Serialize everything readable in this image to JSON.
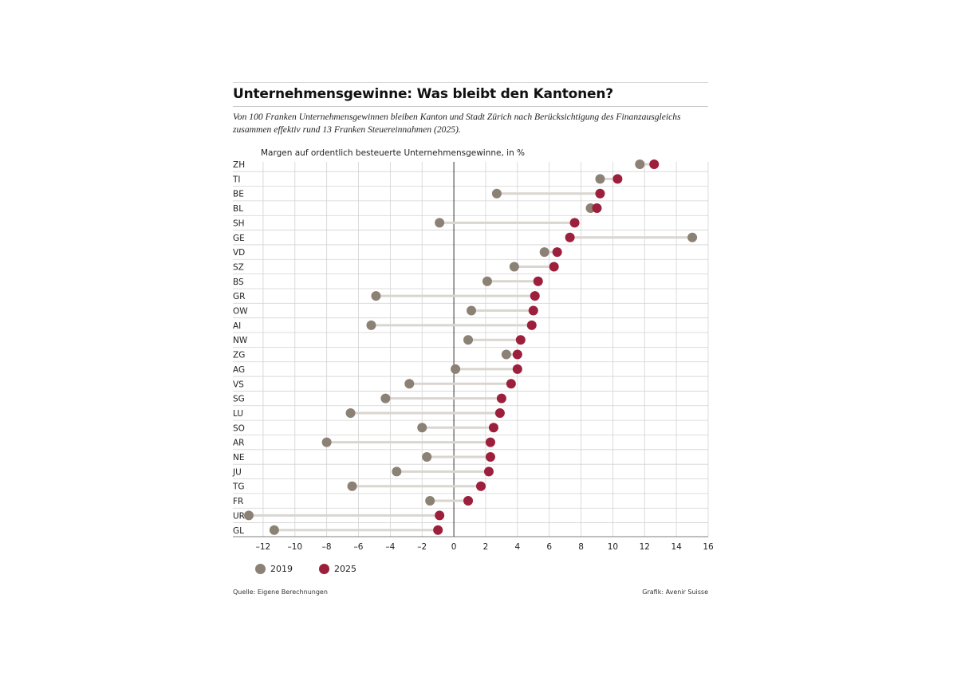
{
  "header": {
    "title": "Unternehmensgewinne: Was bleibt den Kantonen?",
    "subtitle": "Von 100 Franken Unternehmensgewinnen bleiben Kanton und Stadt Zürich nach Berücksichtigung des Finanzausgleichs zusammen effektiv rund 13 Franken Steuereinnahmen (2025)."
  },
  "chart_data": {
    "type": "dumbbell",
    "ylabel": "Margen auf ordentlich besteuerte Unternehmensgewinne, in %",
    "categories": [
      "ZH",
      "TI",
      "BE",
      "BL",
      "SH",
      "GE",
      "VD",
      "SZ",
      "BS",
      "GR",
      "OW",
      "AI",
      "NW",
      "ZG",
      "AG",
      "VS",
      "SG",
      "LU",
      "SO",
      "AR",
      "NE",
      "JU",
      "TG",
      "FR",
      "UR",
      "GL"
    ],
    "series": [
      {
        "name": "2019",
        "color": "#8b8175",
        "values": [
          11.7,
          9.2,
          2.7,
          8.6,
          -0.9,
          15.0,
          5.7,
          3.8,
          2.1,
          -4.9,
          1.1,
          -5.2,
          0.9,
          3.3,
          0.1,
          -2.8,
          -4.3,
          -6.5,
          -2.0,
          -8.0,
          -1.7,
          -3.6,
          -6.4,
          -1.5,
          -12.9,
          -11.3
        ]
      },
      {
        "name": "2025",
        "color": "#9c1f3c",
        "values": [
          12.6,
          10.3,
          9.2,
          9.0,
          7.6,
          7.3,
          6.5,
          6.3,
          5.3,
          5.1,
          5.0,
          4.9,
          4.2,
          4.0,
          4.0,
          3.6,
          3.0,
          2.9,
          2.5,
          2.3,
          2.3,
          2.2,
          1.7,
          0.9,
          -0.9,
          -1.0
        ]
      }
    ],
    "xlim": [
      -13,
      16
    ],
    "xticks": [
      -12,
      -10,
      -8,
      -6,
      -4,
      -2,
      0,
      2,
      4,
      6,
      8,
      10,
      12,
      14,
      16
    ],
    "xtick_labels": [
      "–12",
      "–10",
      "–8",
      "–6",
      "–4",
      "–2",
      "0",
      "2",
      "4",
      "6",
      "8",
      "10",
      "12",
      "14",
      "16"
    ],
    "grid": true,
    "legend_position": "bottom-left"
  },
  "legend": {
    "items": [
      {
        "label": "2019",
        "color": "#8b8175"
      },
      {
        "label": "2025",
        "color": "#9c1f3c"
      }
    ]
  },
  "footer": {
    "source": "Quelle: Eigene Berechnungen",
    "credit": "Grafik: Avenir Suisse"
  }
}
